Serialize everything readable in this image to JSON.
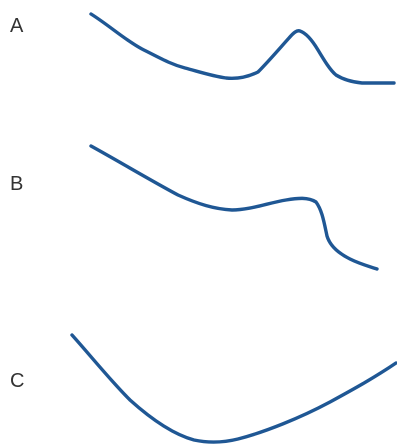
{
  "colors": {
    "curve": "#1f5794",
    "label": "#333333",
    "background": "#ffffff"
  },
  "panels": [
    {
      "label": "A"
    },
    {
      "label": "B"
    },
    {
      "label": "C"
    }
  ]
}
